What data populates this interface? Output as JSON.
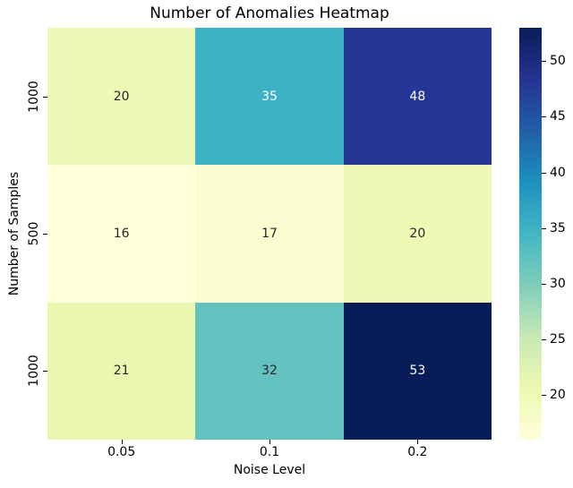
{
  "figure": {
    "background_color": "#ffffff",
    "text_color": "#000000"
  },
  "chart_data": {
    "type": "heatmap",
    "title": "Number of Anomalies Heatmap",
    "xlabel": "Noise Level",
    "ylabel": "Number of Samples",
    "x_categories": [
      "0.05",
      "0.1",
      "0.2"
    ],
    "y_categories": [
      "1000",
      "500",
      "1000"
    ],
    "values": [
      [
        20,
        35,
        48
      ],
      [
        16,
        17,
        20
      ],
      [
        21,
        32,
        53
      ]
    ],
    "vmin": 16,
    "vmax": 53,
    "colormap": "YlGnBu",
    "colormap_anchors": [
      "#ffffd9",
      "#edf8b1",
      "#c7e9b4",
      "#7fcdbb",
      "#41b6c4",
      "#1d91c0",
      "#225ea8",
      "#253494",
      "#081d58"
    ],
    "annotation_color_dark": "#262626",
    "annotation_color_light": "#ffffff",
    "colorbar": {
      "position": "right",
      "ticks": [
        20,
        25,
        30,
        35,
        40,
        45,
        50
      ]
    },
    "grid": false,
    "legend_position": "none"
  }
}
